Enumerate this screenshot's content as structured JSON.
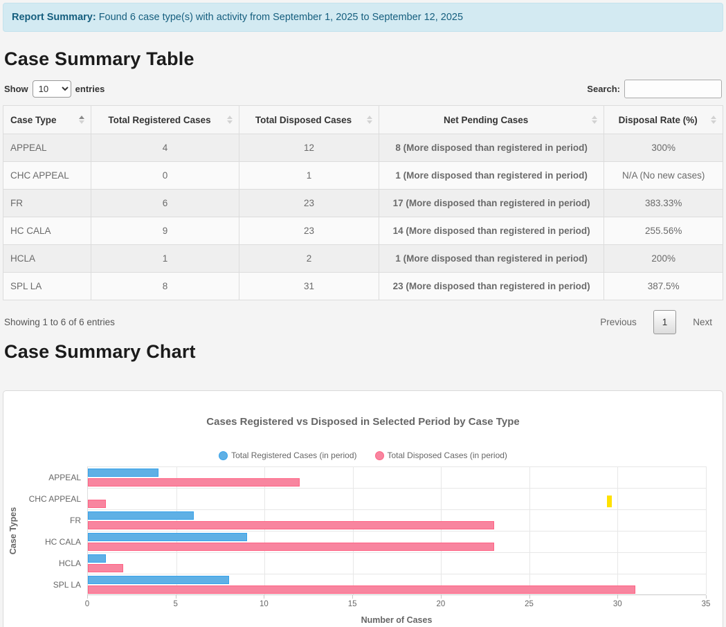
{
  "banner": {
    "label": "Report Summary:",
    "text": " Found 6 case type(s) with activity from September 1, 2025 to September 12, 2025"
  },
  "table_section": {
    "title": "Case Summary Table",
    "show_label": "Show",
    "entries_label": "entries",
    "page_length": "10",
    "search_label": "Search:",
    "search_value": "",
    "columns": {
      "case_type": "Case Type",
      "registered": "Total Registered Cases",
      "disposed": "Total Disposed Cases",
      "pending": "Net Pending Cases",
      "rate": "Disposal Rate (%)"
    },
    "rows": [
      {
        "case_type": "APPEAL",
        "registered": "4",
        "disposed": "12",
        "net_pending": "8 (More disposed than registered in period)",
        "disposal_rate": "300%"
      },
      {
        "case_type": "CHC APPEAL",
        "registered": "0",
        "disposed": "1",
        "net_pending": "1 (More disposed than registered in period)",
        "disposal_rate": "N/A (No new cases)"
      },
      {
        "case_type": "FR",
        "registered": "6",
        "disposed": "23",
        "net_pending": "17 (More disposed than registered in period)",
        "disposal_rate": "383.33%"
      },
      {
        "case_type": "HC CALA",
        "registered": "9",
        "disposed": "23",
        "net_pending": "14 (More disposed than registered in period)",
        "disposal_rate": "255.56%"
      },
      {
        "case_type": "HCLA",
        "registered": "1",
        "disposed": "2",
        "net_pending": "1 (More disposed than registered in period)",
        "disposal_rate": "200%"
      },
      {
        "case_type": "SPL LA",
        "registered": "8",
        "disposed": "31",
        "net_pending": "23 (More disposed than registered in period)",
        "disposal_rate": "387.5%"
      }
    ],
    "info_text": "Showing 1 to 6 of 6 entries",
    "pagination": {
      "previous": "Previous",
      "current_page": "1",
      "next": "Next"
    }
  },
  "chart_section": {
    "title": "Case Summary Chart"
  },
  "chart_data": {
    "type": "bar",
    "orientation": "horizontal",
    "title": "Cases Registered vs Disposed in Selected Period by Case Type",
    "categories": [
      "APPEAL",
      "CHC APPEAL",
      "FR",
      "HC CALA",
      "HCLA",
      "SPL LA"
    ],
    "series": [
      {
        "name": "Total Registered Cases (in period)",
        "values": [
          4,
          0,
          6,
          9,
          1,
          8
        ],
        "color": "#5fb0e5",
        "border_color": "#36a2eb"
      },
      {
        "name": "Total Disposed Cases (in period)",
        "values": [
          12,
          1,
          23,
          23,
          2,
          31
        ],
        "color": "#f8859f",
        "border_color": "#ff6384"
      }
    ],
    "xlabel": "Number of Cases",
    "ylabel": "Case Types",
    "xlim": [
      0,
      35
    ],
    "xticks": [
      0,
      5,
      10,
      15,
      20,
      25,
      30,
      35
    ],
    "grid": true,
    "legend_position": "top",
    "annotation_marker": {
      "category_index": 1,
      "x": 29.4,
      "color": "#ffe100"
    }
  },
  "colors": {
    "banner_bg": "#d3eaf2",
    "banner_text": "#155e7e",
    "pending_text": "#dc3545",
    "registered_bar": "#5fb0e5",
    "disposed_bar": "#f8859f"
  }
}
